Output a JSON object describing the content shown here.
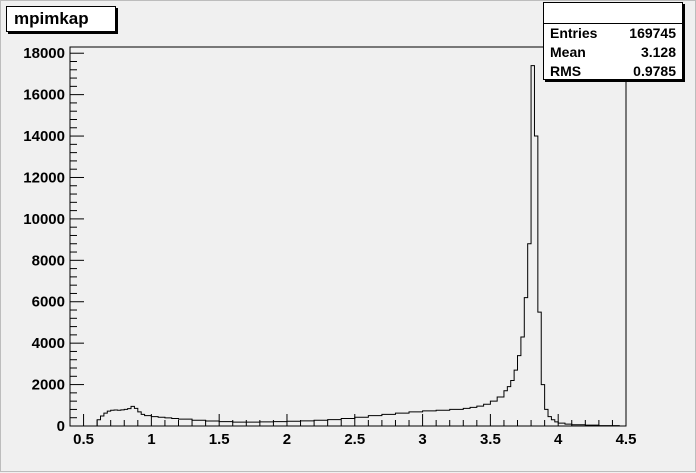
{
  "window": {
    "title": "mpimkap"
  },
  "stats": {
    "rows": [
      {
        "label": "Entries",
        "value": "169745"
      },
      {
        "label": "Mean",
        "value": "3.128"
      },
      {
        "label": "RMS",
        "value": "0.9785"
      }
    ]
  },
  "chart_data": {
    "type": "histogram",
    "title": "mpimkap",
    "xlabel": "",
    "ylabel": "",
    "xlim": [
      0.4,
      4.5
    ],
    "ylim": [
      0,
      18300
    ],
    "xticks": [
      0.5,
      1,
      1.5,
      2,
      2.5,
      3,
      3.5,
      4,
      4.5
    ],
    "xtick_labels": [
      "0.5",
      "1",
      "1.5",
      "2",
      "2.5",
      "3",
      "3.5",
      "4",
      "4.5"
    ],
    "yticks": [
      0,
      2000,
      4000,
      6000,
      8000,
      10000,
      12000,
      14000,
      16000,
      18000
    ],
    "ytick_labels": [
      "0",
      "2000",
      "4000",
      "6000",
      "8000",
      "10000",
      "12000",
      "14000",
      "16000",
      "18000"
    ],
    "grid": false,
    "legend": "none",
    "line_color": "#000000",
    "series": [
      {
        "bin_edges": [
          0.6,
          0.625,
          0.65,
          0.675,
          0.7,
          0.725,
          0.75,
          0.775,
          0.8,
          0.825,
          0.85,
          0.875,
          0.9,
          0.925,
          0.95,
          1.0,
          1.05,
          1.1,
          1.15,
          1.2,
          1.3,
          1.4,
          1.5,
          1.6,
          1.7,
          1.8,
          1.9,
          2.0,
          2.1,
          2.2,
          2.3,
          2.4,
          2.5,
          2.6,
          2.7,
          2.8,
          2.9,
          3.0,
          3.1,
          3.2,
          3.3,
          3.35,
          3.4,
          3.45,
          3.5,
          3.55,
          3.6,
          3.625,
          3.65,
          3.675,
          3.7,
          3.725,
          3.75,
          3.775,
          3.8,
          3.825,
          3.85,
          3.875,
          3.9,
          3.925,
          3.95,
          3.975,
          4.0,
          4.05,
          4.1,
          4.2,
          4.3,
          4.45
        ],
        "counts": [
          300,
          480,
          620,
          720,
          760,
          770,
          760,
          780,
          800,
          840,
          950,
          850,
          680,
          560,
          500,
          450,
          420,
          390,
          360,
          330,
          280,
          240,
          210,
          190,
          190,
          200,
          210,
          230,
          250,
          280,
          310,
          360,
          420,
          500,
          560,
          620,
          680,
          730,
          760,
          800,
          850,
          900,
          960,
          1050,
          1200,
          1400,
          1700,
          1900,
          2200,
          2700,
          3400,
          4300,
          6200,
          8800,
          17400,
          14000,
          5500,
          2000,
          800,
          450,
          300,
          200,
          140,
          90,
          60,
          40,
          20
        ]
      }
    ]
  }
}
